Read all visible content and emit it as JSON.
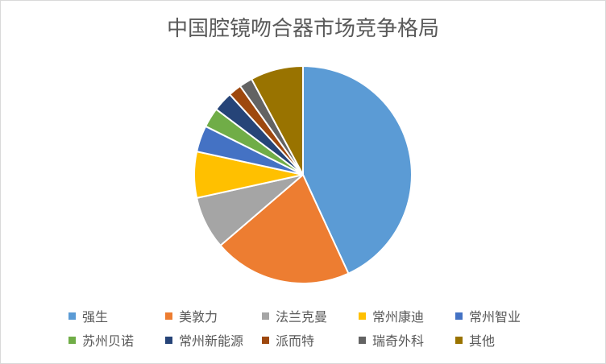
{
  "chart_data": {
    "type": "pie",
    "title": "中国腔镜吻合器市场竞争格局",
    "slices": [
      {
        "label": "强生",
        "value": 44,
        "color": "#5B9BD5"
      },
      {
        "label": "美敦力",
        "value": 21,
        "color": "#ED7D31"
      },
      {
        "label": "法兰克曼",
        "value": 8,
        "color": "#A5A5A5"
      },
      {
        "label": "常州康迪",
        "value": 7,
        "color": "#FFC000"
      },
      {
        "label": "常州智业",
        "value": 4,
        "color": "#4472C4"
      },
      {
        "label": "苏州贝诺",
        "value": 3,
        "color": "#70AD47"
      },
      {
        "label": "常州新能源",
        "value": 3,
        "color": "#264478"
      },
      {
        "label": "派而特",
        "value": 2,
        "color": "#9E480E"
      },
      {
        "label": "瑞奇外科",
        "value": 2,
        "color": "#636363"
      },
      {
        "label": "其他",
        "value": 8,
        "color": "#997300"
      }
    ],
    "legend_position": "bottom"
  }
}
